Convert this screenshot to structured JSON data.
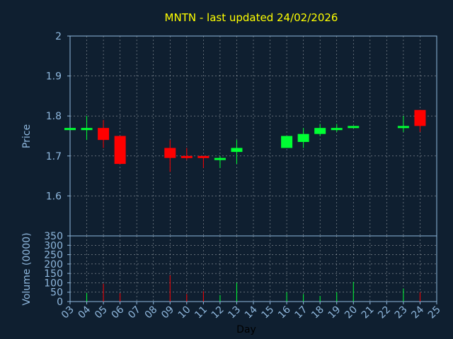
{
  "chart_data": {
    "type": "candlestick",
    "title": "MNTN - last updated 24/02/2026",
    "xlabel": "Day",
    "x_ticks": [
      "03",
      "04",
      "05",
      "06",
      "07",
      "08",
      "09",
      "10",
      "11",
      "12",
      "13",
      "14",
      "15",
      "16",
      "17",
      "18",
      "19",
      "20",
      "21",
      "22",
      "23",
      "24",
      "25"
    ],
    "grid": true,
    "colors": {
      "background": "#0f1f30",
      "up": "#00ff33",
      "down": "#ff0000",
      "axis": "#8fb8de",
      "grid": "#ffffff",
      "title": "#ffff00"
    },
    "price_panel": {
      "ylabel": "Price",
      "ylim": [
        1.5,
        2.0
      ],
      "y_ticks": [
        "2",
        "1.9",
        "1.8",
        "1.7",
        "1.6"
      ],
      "candles": [
        {
          "day": "03",
          "open": 1.77,
          "high": 1.77,
          "low": 1.77,
          "close": 1.77
        },
        {
          "day": "04",
          "open": 1.77,
          "high": 1.8,
          "low": 1.74,
          "close": 1.77
        },
        {
          "day": "05",
          "open": 1.77,
          "high": 1.79,
          "low": 1.72,
          "close": 1.74
        },
        {
          "day": "06",
          "open": 1.75,
          "high": 1.75,
          "low": 1.68,
          "close": 1.68
        },
        {
          "day": "09",
          "open": 1.72,
          "high": 1.74,
          "low": 1.66,
          "close": 1.695
        },
        {
          "day": "10",
          "open": 1.7,
          "high": 1.72,
          "low": 1.69,
          "close": 1.695
        },
        {
          "day": "11",
          "open": 1.7,
          "high": 1.7,
          "low": 1.67,
          "close": 1.695
        },
        {
          "day": "12",
          "open": 1.695,
          "high": 1.7,
          "low": 1.67,
          "close": 1.695
        },
        {
          "day": "13",
          "open": 1.71,
          "high": 1.74,
          "low": 1.68,
          "close": 1.72
        },
        {
          "day": "16",
          "open": 1.72,
          "high": 1.75,
          "low": 1.72,
          "close": 1.75
        },
        {
          "day": "17",
          "open": 1.735,
          "high": 1.77,
          "low": 1.72,
          "close": 1.755
        },
        {
          "day": "18",
          "open": 1.755,
          "high": 1.78,
          "low": 1.75,
          "close": 1.77
        },
        {
          "day": "19",
          "open": 1.77,
          "high": 1.78,
          "low": 1.76,
          "close": 1.77
        },
        {
          "day": "20",
          "open": 1.77,
          "high": 1.775,
          "low": 1.77,
          "close": 1.775
        },
        {
          "day": "23",
          "open": 1.77,
          "high": 1.8,
          "low": 1.76,
          "close": 1.775
        },
        {
          "day": "24",
          "open": 1.815,
          "high": 1.815,
          "low": 1.76,
          "close": 1.775
        }
      ]
    },
    "volume_panel": {
      "ylabel": "Volume (0000)",
      "ylim": [
        0,
        350
      ],
      "y_ticks": [
        "350",
        "300",
        "250",
        "200",
        "150",
        "100",
        "50",
        "0"
      ],
      "bars": [
        {
          "day": "04",
          "value": 45,
          "dir": "up"
        },
        {
          "day": "05",
          "value": 95,
          "dir": "down"
        },
        {
          "day": "06",
          "value": 45,
          "dir": "down"
        },
        {
          "day": "09",
          "value": 140,
          "dir": "down"
        },
        {
          "day": "10",
          "value": 40,
          "dir": "down"
        },
        {
          "day": "11",
          "value": 55,
          "dir": "down"
        },
        {
          "day": "12",
          "value": 35,
          "dir": "up"
        },
        {
          "day": "13",
          "value": 100,
          "dir": "up"
        },
        {
          "day": "16",
          "value": 50,
          "dir": "up"
        },
        {
          "day": "17",
          "value": 40,
          "dir": "up"
        },
        {
          "day": "18",
          "value": 30,
          "dir": "up"
        },
        {
          "day": "19",
          "value": 50,
          "dir": "up"
        },
        {
          "day": "20",
          "value": 105,
          "dir": "up"
        },
        {
          "day": "23",
          "value": 70,
          "dir": "up"
        },
        {
          "day": "24",
          "value": 50,
          "dir": "down"
        }
      ]
    }
  }
}
